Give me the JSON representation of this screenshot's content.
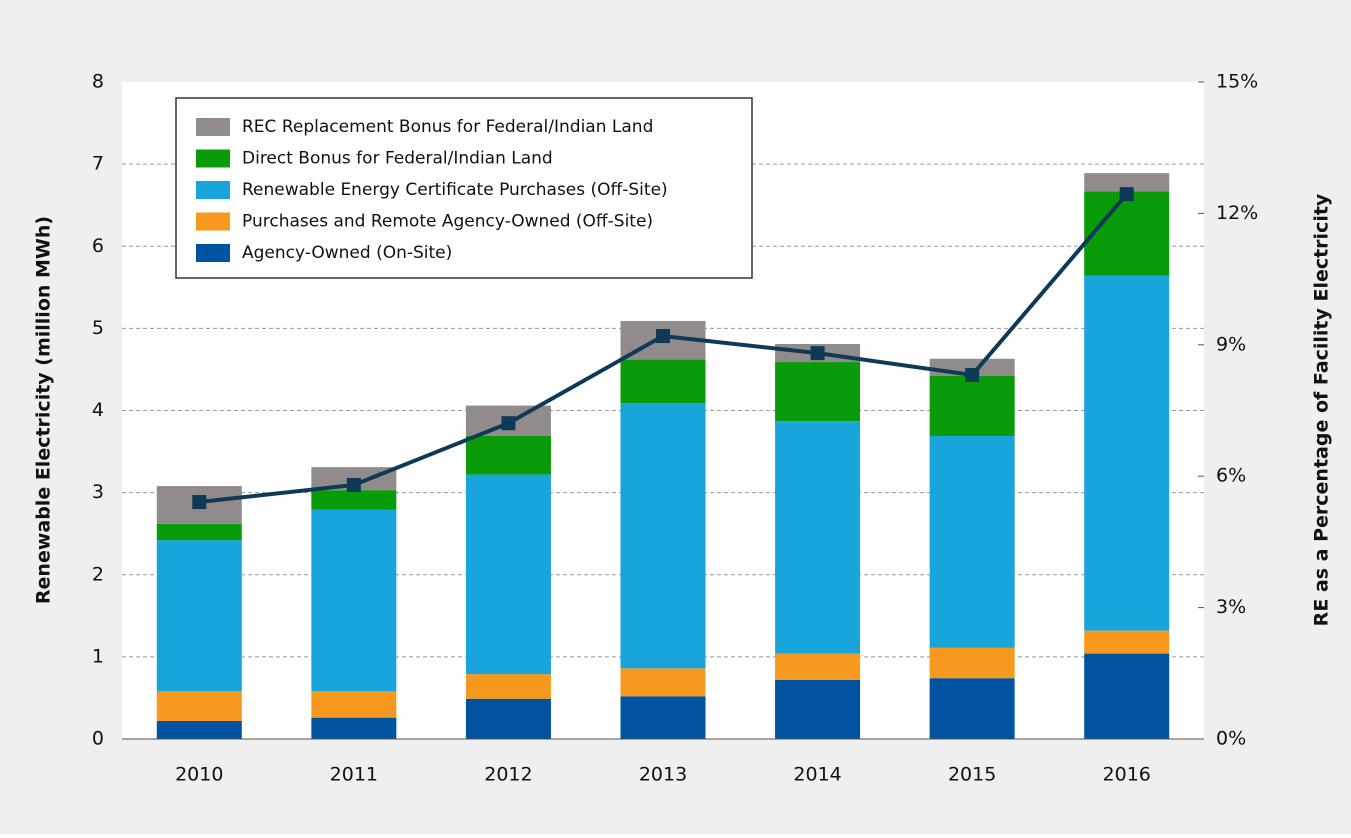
{
  "chart_data": {
    "type": "bar",
    "stacked": true,
    "y_label": "Renewable Electricity (million MWh)",
    "y2_label": "RE as a Percentage of Facility Electricity",
    "categories": [
      "2010",
      "2011",
      "2012",
      "2013",
      "2014",
      "2015",
      "2016"
    ],
    "series": [
      {
        "name": "Agency-Owned (On-Site)",
        "color": "#0053a0",
        "values": [
          0.22,
          0.26,
          0.49,
          0.52,
          0.72,
          0.74,
          1.04
        ]
      },
      {
        "name": "Purchases and Remote Agency-Owned (Off-Site)",
        "color": "#f7991e",
        "values": [
          0.36,
          0.32,
          0.3,
          0.34,
          0.32,
          0.37,
          0.28
        ]
      },
      {
        "name": "Renewable Energy Certificate Purchases (Off-Site)",
        "color": "#17a5dc",
        "values": [
          1.84,
          2.21,
          2.43,
          3.23,
          2.83,
          2.58,
          4.32
        ]
      },
      {
        "name": "Direct Bonus for Federal/Indian Land",
        "color": "#0a9b0a",
        "values": [
          0.2,
          0.24,
          0.47,
          0.53,
          0.72,
          0.73,
          1.03
        ]
      },
      {
        "name": "REC Replacement Bonus for Federal/Indian Land",
        "color": "#918b8b",
        "values": [
          0.46,
          0.28,
          0.37,
          0.47,
          0.22,
          0.21,
          0.22
        ]
      },
      {
        "type": "line",
        "axis": "y2",
        "color": "#0e3a57",
        "values": [
          5.41,
          5.8,
          7.21,
          9.2,
          8.81,
          8.31,
          12.44
        ]
      }
    ],
    "ylim": [
      0,
      8
    ],
    "yticks": [
      0,
      1,
      2,
      3,
      4,
      5,
      6,
      7,
      8
    ],
    "y2lim": [
      0,
      15
    ],
    "y2ticks": [
      {
        "value": 0,
        "label": "0%"
      },
      {
        "value": 3,
        "label": "3%"
      },
      {
        "value": 6,
        "label": "6%"
      },
      {
        "value": 9,
        "label": "9%"
      },
      {
        "value": 12,
        "label": "12%"
      },
      {
        "value": 15,
        "label": "15%"
      }
    ],
    "grid": true,
    "legend": "upper left"
  }
}
